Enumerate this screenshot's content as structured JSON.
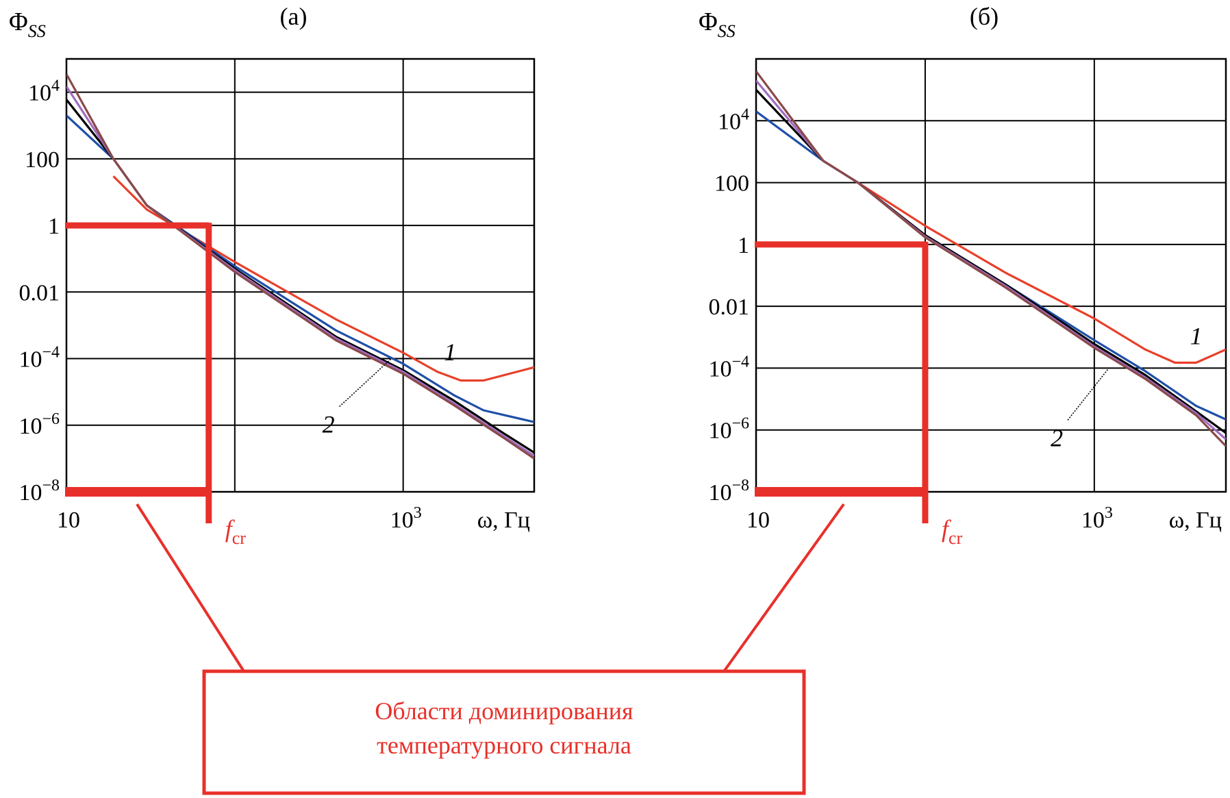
{
  "annotation": {
    "line1": "Области доминирования",
    "line2": "температурного сигнала"
  },
  "colors": {
    "accent_red": "#e8302a",
    "series": [
      "#e8402a",
      "#1f4fa8",
      "#000000",
      "#a06cc0",
      "#8a4a4a"
    ]
  },
  "chart_data": [
    {
      "type": "line",
      "title": "(а)",
      "ylabel": "Φ",
      "ylabel_sub": "SS",
      "xlabel": "ω, Гц",
      "x_scale": "log",
      "y_scale": "log",
      "xlim": [
        10,
        6000
      ],
      "ylim": [
        1e-08,
        100000.0
      ],
      "grid": true,
      "x_grid": [
        10,
        100,
        1000,
        6000
      ],
      "x_ticks": [
        {
          "value": 10,
          "label": "10"
        },
        {
          "value": 1000,
          "label": "10",
          "sup": "3"
        }
      ],
      "y_ticks": [
        {
          "value": 1e-08,
          "label": "10",
          "sup": "−8"
        },
        {
          "value": 1e-06,
          "label": "10",
          "sup": "−6"
        },
        {
          "value": 0.0001,
          "label": "10",
          "sup": "−4"
        },
        {
          "value": 0.01,
          "label": "0.01"
        },
        {
          "value": 1,
          "label": "1"
        },
        {
          "value": 100,
          "label": "100"
        },
        {
          "value": 10000,
          "label": "10",
          "sup": "4"
        }
      ],
      "series": [
        {
          "name": "1",
          "color": "#e8402a",
          "points": [
            [
              19,
              30
            ],
            [
              30,
              3
            ],
            [
              100,
              0.08
            ],
            [
              400,
              0.0015
            ],
            [
              1000,
              0.00015
            ],
            [
              1600,
              4e-05
            ],
            [
              2200,
              2.2e-05
            ],
            [
              3000,
              2.2e-05
            ],
            [
              6000,
              5.5e-05
            ]
          ]
        },
        {
          "name": "",
          "color": "#1f4fa8",
          "points": [
            [
              10,
              2000
            ],
            [
              19,
              100
            ],
            [
              30,
              4
            ],
            [
              100,
              0.06
            ],
            [
              400,
              0.0007
            ],
            [
              1000,
              7e-05
            ],
            [
              2000,
              8e-06
            ],
            [
              3000,
              2.8e-06
            ],
            [
              6000,
              1.25e-06
            ]
          ]
        },
        {
          "name": "2",
          "color": "#000000",
          "points": [
            [
              10,
              6000
            ],
            [
              19,
              100
            ],
            [
              30,
              4
            ],
            [
              100,
              0.05
            ],
            [
              400,
              0.00045
            ],
            [
              1000,
              4.5e-05
            ],
            [
              2000,
              5.5e-06
            ],
            [
              4000,
              5.5e-07
            ],
            [
              6000,
              1.5e-07
            ]
          ]
        },
        {
          "name": "",
          "color": "#a06cc0",
          "points": [
            [
              10,
              15000
            ],
            [
              19,
              100
            ],
            [
              30,
              4
            ],
            [
              100,
              0.045
            ],
            [
              400,
              0.0004
            ],
            [
              1000,
              4e-05
            ],
            [
              2000,
              4.5e-06
            ],
            [
              4000,
              4.5e-07
            ],
            [
              6000,
              1.2e-07
            ]
          ]
        },
        {
          "name": "",
          "color": "#8a4a4a",
          "points": [
            [
              10,
              35000
            ],
            [
              19,
              100
            ],
            [
              30,
              4
            ],
            [
              100,
              0.04
            ],
            [
              400,
              0.00035
            ],
            [
              1000,
              3.5e-05
            ],
            [
              2000,
              4e-06
            ],
            [
              4000,
              4e-07
            ],
            [
              6000,
              1e-07
            ]
          ]
        }
      ],
      "curve_labels": [
        {
          "text": "1",
          "x": 1900,
          "y": 9e-05
        },
        {
          "text": "2",
          "x": 360,
          "y": 6e-07,
          "leader_to": [
            850,
            0.0001
          ]
        }
      ],
      "marker": {
        "label": "f",
        "label_sub": "cr",
        "x": 70,
        "y_low": 1e-08,
        "y_high": 1
      }
    },
    {
      "type": "line",
      "title": "(б)",
      "ylabel": "Φ",
      "ylabel_sub": "SS",
      "xlabel": "ω, Гц",
      "x_scale": "log",
      "y_scale": "log",
      "xlim": [
        10,
        6000
      ],
      "ylim": [
        1e-08,
        1000000.0
      ],
      "grid": true,
      "x_grid": [
        10,
        100,
        1000,
        6000
      ],
      "x_ticks": [
        {
          "value": 10,
          "label": "10"
        },
        {
          "value": 1000,
          "label": "10",
          "sup": "3"
        }
      ],
      "y_ticks": [
        {
          "value": 1e-08,
          "label": "10",
          "sup": "−8"
        },
        {
          "value": 1e-06,
          "label": "10",
          "sup": "−6"
        },
        {
          "value": 0.0001,
          "label": "10",
          "sup": "−4"
        },
        {
          "value": 0.01,
          "label": "0.01"
        },
        {
          "value": 1,
          "label": "1"
        },
        {
          "value": 100,
          "label": "100"
        },
        {
          "value": 10000,
          "label": "10",
          "sup": "4"
        }
      ],
      "series": [
        {
          "name": "1",
          "color": "#e8402a",
          "points": [
            [
              25,
              500
            ],
            [
              40,
              100
            ],
            [
              100,
              4
            ],
            [
              300,
              0.12
            ],
            [
              1000,
              0.004
            ],
            [
              2000,
              0.0004
            ],
            [
              3000,
              0.00015
            ],
            [
              4000,
              0.00015
            ],
            [
              6000,
              0.0004
            ]
          ]
        },
        {
          "name": "",
          "color": "#1f4fa8",
          "points": [
            [
              10,
              20000
            ],
            [
              25,
              500
            ],
            [
              40,
              100
            ],
            [
              100,
              2
            ],
            [
              300,
              0.05
            ],
            [
              1000,
              0.0008
            ],
            [
              2000,
              8e-05
            ],
            [
              4000,
              6e-06
            ],
            [
              6000,
              2.2e-06
            ]
          ]
        },
        {
          "name": "2",
          "color": "#000000",
          "points": [
            [
              10,
              100000
            ],
            [
              25,
              500
            ],
            [
              40,
              100
            ],
            [
              100,
              2
            ],
            [
              300,
              0.05
            ],
            [
              1000,
              0.0006
            ],
            [
              2000,
              6e-05
            ],
            [
              4000,
              4e-06
            ],
            [
              6000,
              8e-07
            ]
          ]
        },
        {
          "name": "",
          "color": "#a06cc0",
          "points": [
            [
              10,
              200000
            ],
            [
              25,
              500
            ],
            [
              40,
              100
            ],
            [
              100,
              1.8
            ],
            [
              300,
              0.045
            ],
            [
              1000,
              0.0005
            ],
            [
              2000,
              5e-05
            ],
            [
              4000,
              3.5e-06
            ],
            [
              6000,
              5e-07
            ]
          ]
        },
        {
          "name": "",
          "color": "#8a4a4a",
          "points": [
            [
              10,
              400000
            ],
            [
              25,
              500
            ],
            [
              40,
              100
            ],
            [
              100,
              1.7
            ],
            [
              300,
              0.04
            ],
            [
              1000,
              0.00045
            ],
            [
              2000,
              4.5e-05
            ],
            [
              4000,
              3e-06
            ],
            [
              6000,
              3e-07
            ]
          ]
        }
      ],
      "curve_labels": [
        {
          "text": "1",
          "x": 4000,
          "y": 0.0006
        },
        {
          "text": "2",
          "x": 600,
          "y": 3e-07,
          "leader_to": [
            1200,
            9e-05
          ]
        }
      ],
      "marker": {
        "label": "f",
        "label_sub": "cr",
        "x": 100,
        "y_low": 1e-08,
        "y_high": 1
      }
    }
  ]
}
